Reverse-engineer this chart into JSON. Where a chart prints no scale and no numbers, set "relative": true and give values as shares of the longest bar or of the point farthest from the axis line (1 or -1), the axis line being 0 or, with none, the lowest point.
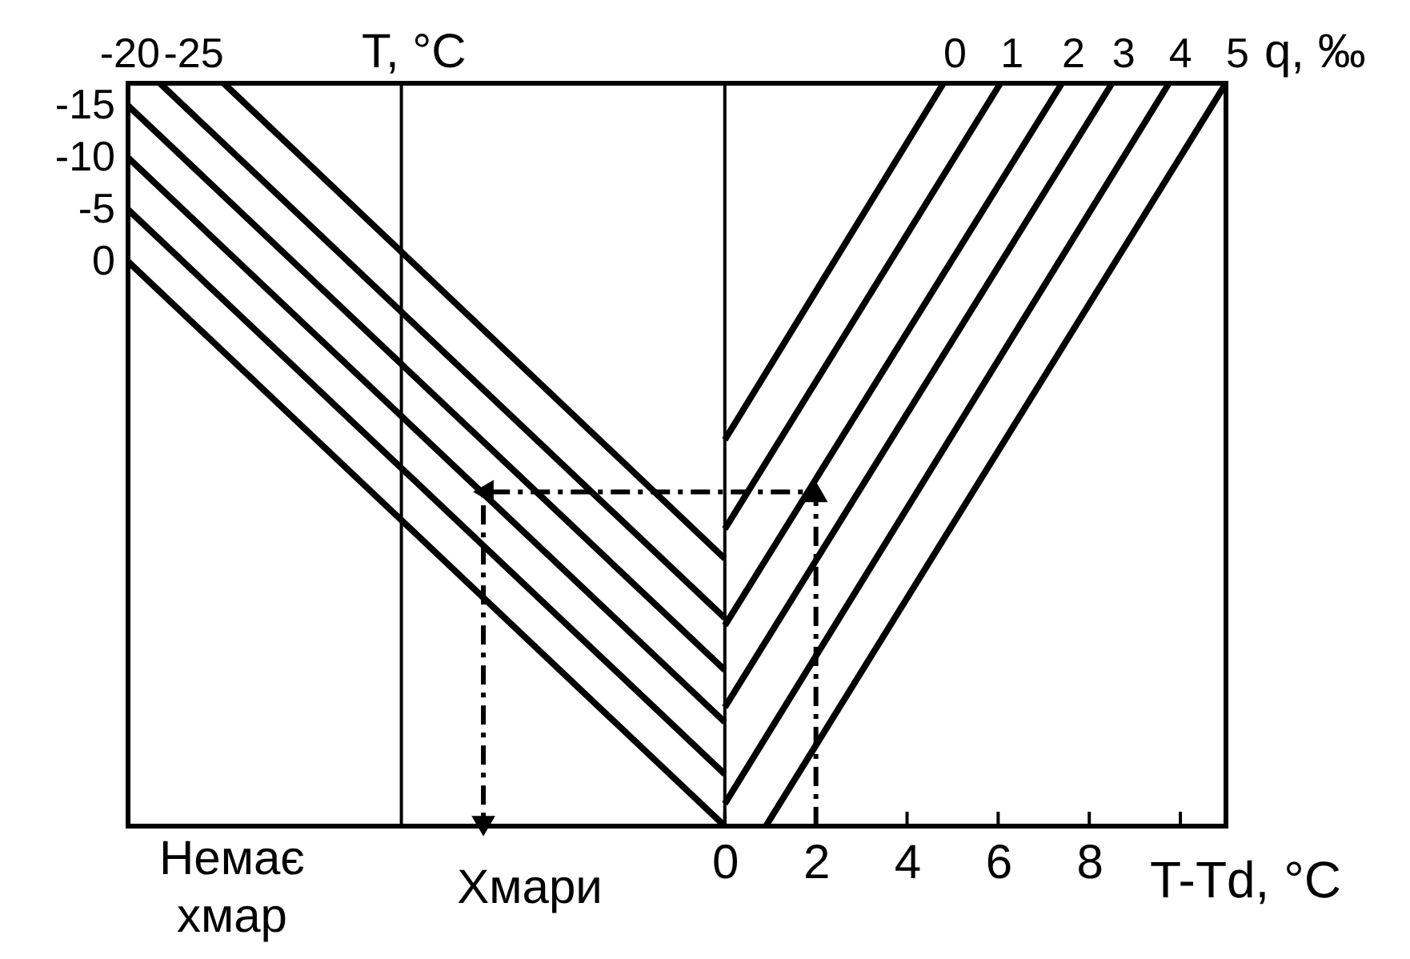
{
  "chart_data": {
    "type": "line",
    "xlabel": "T-Td, °C",
    "relative": true,
    "line_style": "solid",
    "xlim": [
      -13.1,
      11
    ],
    "xticks": [
      0,
      2,
      4,
      6,
      8,
      {
        "value": 10,
        "label": null
      }
    ],
    "series": [
      {
        "name": "0",
        "color": "#000000",
        "x": [
          -13.1,
          0
        ],
        "values": [
          0.76,
          0
        ]
      },
      {
        "name": "-5",
        "color": "#000000",
        "x": [
          -13.1,
          0
        ],
        "values": [
          0.83,
          0.07
        ]
      },
      {
        "name": "-10",
        "color": "#000000",
        "x": [
          -13.1,
          0
        ],
        "values": [
          0.9,
          0.14
        ]
      },
      {
        "name": "-15",
        "color": "#000000",
        "x": [
          -13.1,
          0
        ],
        "values": [
          0.97,
          0.21
        ]
      },
      {
        "name": "-20",
        "color": "#000000",
        "x": [
          -12.4,
          0
        ],
        "values": [
          1,
          0.28
        ]
      },
      {
        "name": "-25",
        "color": "#000000",
        "x": [
          -11.0,
          0
        ],
        "values": [
          1,
          0.36
        ]
      },
      {
        "name": "0",
        "color": "#000000",
        "x": [
          0,
          4.8
        ],
        "values": [
          0.52,
          1
        ]
      },
      {
        "name": "1",
        "color": "#000000",
        "x": [
          0,
          6.05
        ],
        "values": [
          0.4,
          1
        ]
      },
      {
        "name": "2",
        "color": "#000000",
        "x": [
          0,
          7.4
        ],
        "values": [
          0.27,
          1
        ]
      },
      {
        "name": "3",
        "color": "#000000",
        "x": [
          0,
          8.5
        ],
        "values": [
          0.16,
          1
        ]
      },
      {
        "name": "4",
        "color": "#000000",
        "x": [
          0,
          9.75
        ],
        "values": [
          0.03,
          1
        ]
      },
      {
        "name": "5",
        "color": "#000000",
        "x": [
          0.9,
          11
        ],
        "values": [
          0,
          1
        ]
      },
      {
        "color": "#000000",
        "x": [
          2,
          2,
          -5.3,
          -5.3
        ],
        "values": [
          0,
          0.45,
          0.45,
          0
        ],
        "line_style": "dashed",
        "marker": "triangle"
      }
    ],
    "ref_lines": [
      {
        "axis": "x",
        "value": -7.1
      },
      {
        "axis": "x",
        "value": 0
      }
    ],
    "annotations": [
      "T, °C",
      "q, ‰",
      "Немає хмар",
      "Хмари"
    ]
  }
}
